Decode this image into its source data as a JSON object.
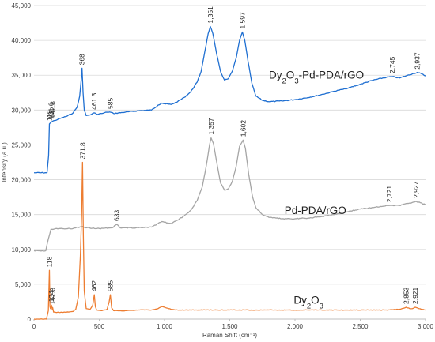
{
  "chart_data": {
    "type": "line",
    "xlabel": "Raman Shift (cm⁻¹)",
    "ylabel": "Intensity (a.u.)",
    "xlim": [
      0,
      3000
    ],
    "ylim": [
      0,
      45000
    ],
    "x_ticks": [
      0,
      500,
      1000,
      1500,
      2000,
      2500,
      3000
    ],
    "x_tick_labels": [
      "0",
      "500",
      "1,000",
      "1,500",
      "2,000",
      "2,500",
      "3,000"
    ],
    "y_ticks": [
      0,
      5000,
      10000,
      15000,
      20000,
      25000,
      30000,
      35000,
      40000,
      45000
    ],
    "y_tick_labels": [
      "0",
      "5,000",
      "10,000",
      "15,000",
      "20,000",
      "25,000",
      "30,000",
      "35,000",
      "40,000",
      "45,000"
    ],
    "grid": "horizontal",
    "series": [
      {
        "name": "Dy₂O₃-Pd-PDA/rGO",
        "color": "#1f6fd1",
        "x": [
          0,
          100,
          112,
          118,
          122,
          132,
          143,
          160,
          200,
          250,
          300,
          330,
          350,
          360,
          368,
          376,
          385,
          400,
          430,
          461,
          480,
          520,
          560,
          585,
          610,
          700,
          800,
          900,
          950,
          980,
          1000,
          1050,
          1100,
          1150,
          1200,
          1250,
          1280,
          1310,
          1335,
          1351,
          1370,
          1400,
          1430,
          1460,
          1490,
          1520,
          1550,
          1575,
          1597,
          1615,
          1640,
          1670,
          1700,
          1750,
          1800,
          1900,
          2000,
          2100,
          2200,
          2300,
          2400,
          2500,
          2600,
          2700,
          2745,
          2800,
          2850,
          2900,
          2937,
          2970,
          3000
        ],
        "y": [
          21000,
          21000,
          23500,
          28000,
          28100,
          28250,
          28400,
          28500,
          28800,
          29100,
          29600,
          30400,
          32000,
          34000,
          36000,
          32500,
          30000,
          29200,
          29300,
          29600,
          29400,
          29500,
          29700,
          29700,
          29500,
          29700,
          29900,
          30000,
          30700,
          31000,
          30900,
          30800,
          31200,
          31800,
          32600,
          34000,
          35500,
          38500,
          41000,
          42000,
          41000,
          38000,
          35500,
          34300,
          34500,
          35600,
          37500,
          40000,
          41200,
          40000,
          37000,
          33800,
          32000,
          31400,
          31200,
          31300,
          31500,
          31800,
          32200,
          32700,
          33100,
          33700,
          34300,
          34700,
          34800,
          34600,
          34900,
          35200,
          35400,
          35200,
          34900
        ]
      },
      {
        "name": "Pd-PDA/rGO",
        "color": "#a5a5a5",
        "x": [
          0,
          90,
          110,
          130,
          200,
          300,
          371,
          400,
          500,
          600,
          633,
          660,
          800,
          900,
          950,
          980,
          1000,
          1050,
          1100,
          1150,
          1200,
          1250,
          1290,
          1320,
          1345,
          1357,
          1375,
          1405,
          1430,
          1460,
          1490,
          1520,
          1550,
          1575,
          1602,
          1620,
          1645,
          1675,
          1700,
          1750,
          1800,
          1900,
          2000,
          2100,
          2200,
          2300,
          2400,
          2500,
          2600,
          2700,
          2721,
          2800,
          2870,
          2927,
          2960,
          3000
        ],
        "y": [
          9800,
          9800,
          11500,
          12900,
          13000,
          13000,
          13300,
          13100,
          13000,
          13100,
          13600,
          13100,
          13100,
          13200,
          13700,
          14000,
          13900,
          13700,
          14200,
          14800,
          15600,
          17000,
          19000,
          22000,
          25000,
          26000,
          25200,
          22000,
          19500,
          18500,
          18700,
          19800,
          22000,
          24800,
          25700,
          24500,
          20800,
          17500,
          16000,
          15000,
          14600,
          14400,
          14400,
          14500,
          14700,
          15000,
          15400,
          15800,
          16000,
          16300,
          16300,
          16300,
          16600,
          16900,
          16700,
          16400
        ]
      },
      {
        "name": "Dy₂O₃",
        "color": "#ed7d31",
        "x": [
          0,
          95,
          110,
          118,
          122,
          126,
          134,
          140,
          142.8,
          150,
          200,
          250,
          300,
          320,
          340,
          355,
          365,
          371.8,
          378,
          385,
          400,
          430,
          450,
          462,
          470,
          480,
          520,
          560,
          575,
          585,
          595,
          610,
          700,
          800,
          900,
          950,
          980,
          1000,
          1050,
          1100,
          1200,
          1500,
          1800,
          2100,
          2400,
          2700,
          2800,
          2840,
          2853,
          2880,
          2900,
          2921,
          2950,
          3000
        ],
        "y": [
          0,
          0,
          1200,
          7000,
          1800,
          1500,
          2000,
          1400,
          1650,
          1000,
          950,
          1000,
          1100,
          1400,
          3200,
          9000,
          15000,
          22500,
          12000,
          4000,
          1500,
          1400,
          2000,
          3500,
          1800,
          1300,
          1200,
          1400,
          2400,
          3500,
          1600,
          1200,
          1200,
          1300,
          1300,
          1500,
          1800,
          1700,
          1400,
          1300,
          1300,
          1300,
          1300,
          1300,
          1300,
          1300,
          1400,
          1600,
          1700,
          1500,
          1500,
          1700,
          1500,
          1300
        ]
      }
    ],
    "peak_labels": [
      {
        "series": 0,
        "x": 118,
        "y": 28000,
        "text": "118"
      },
      {
        "series": 0,
        "x": 131.6,
        "y": 28250,
        "text": "131.6"
      },
      {
        "series": 0,
        "x": 142.8,
        "y": 28400,
        "text": "142.8"
      },
      {
        "series": 0,
        "x": 368,
        "y": 36000,
        "text": "368"
      },
      {
        "series": 0,
        "x": 461.3,
        "y": 29600,
        "text": "461.3"
      },
      {
        "series": 0,
        "x": 585,
        "y": 29700,
        "text": "585"
      },
      {
        "series": 0,
        "x": 1351,
        "y": 42000,
        "text": "1,351"
      },
      {
        "series": 0,
        "x": 1597,
        "y": 41200,
        "text": "1,597"
      },
      {
        "series": 0,
        "x": 2745,
        "y": 34800,
        "text": "2,745"
      },
      {
        "series": 0,
        "x": 2937,
        "y": 35400,
        "text": "2,937"
      },
      {
        "series": 1,
        "x": 633,
        "y": 13600,
        "text": "633"
      },
      {
        "series": 1,
        "x": 1357,
        "y": 26000,
        "text": "1,357"
      },
      {
        "series": 1,
        "x": 1602,
        "y": 25700,
        "text": "1,602"
      },
      {
        "series": 1,
        "x": 2721,
        "y": 16300,
        "text": "2,721"
      },
      {
        "series": 1,
        "x": 2927,
        "y": 16900,
        "text": "2,927"
      },
      {
        "series": 2,
        "x": 118,
        "y": 7000,
        "text": "118"
      },
      {
        "series": 2,
        "x": 134,
        "y": 2000,
        "text": "134"
      },
      {
        "series": 2,
        "x": 142.8,
        "y": 1650,
        "text": "142.8"
      },
      {
        "series": 2,
        "x": 371.8,
        "y": 22500,
        "text": "371.8"
      },
      {
        "series": 2,
        "x": 462,
        "y": 3500,
        "text": "462"
      },
      {
        "series": 2,
        "x": 585,
        "y": 3500,
        "text": "585"
      },
      {
        "series": 2,
        "x": 2853,
        "y": 1700,
        "text": "2,853"
      },
      {
        "series": 2,
        "x": 2921,
        "y": 1700,
        "text": "2,921"
      }
    ],
    "series_labels": [
      {
        "series": 0,
        "x": 1800,
        "y": 34500,
        "main": "Dy",
        "sub": "2",
        "rest": "O",
        "sub2": "3",
        "tail": "-Pd-PDA/rGO"
      },
      {
        "series": 1,
        "x": 1920,
        "y": 15100,
        "main": "Pd-PDA/rGO",
        "sub": "",
        "rest": "",
        "sub2": "",
        "tail": ""
      },
      {
        "series": 2,
        "x": 1990,
        "y": 2200,
        "main": "Dy",
        "sub": "2",
        "rest": "O",
        "sub2": "3",
        "tail": ""
      }
    ]
  }
}
